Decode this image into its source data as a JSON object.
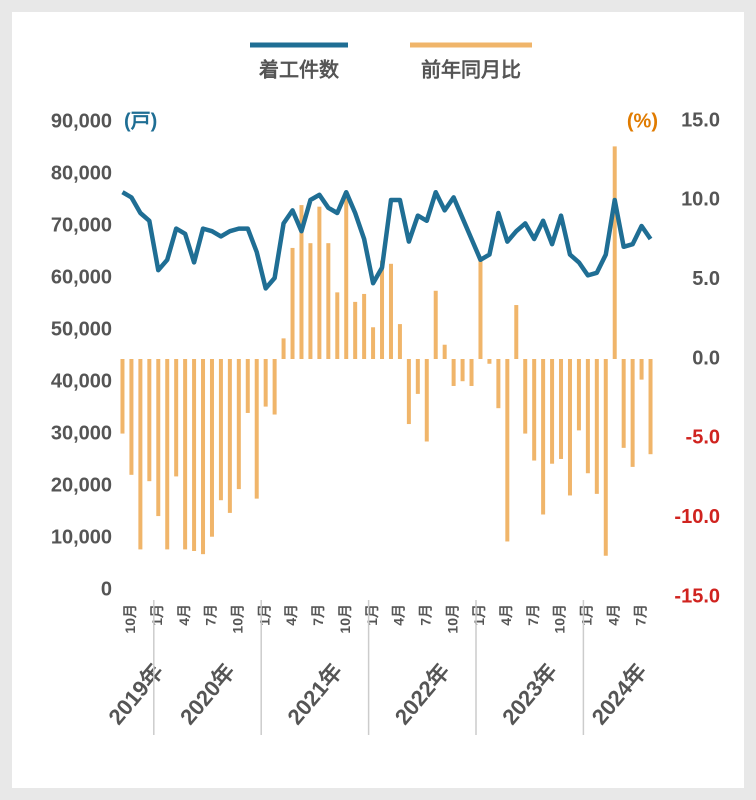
{
  "chart_data": {
    "type": "line_bar",
    "series": [
      {
        "name": "着工件数",
        "type": "line",
        "axis": "y",
        "color": "#1f6e94",
        "values": [
          76500,
          75500,
          72500,
          71000,
          61500,
          63500,
          69500,
          68500,
          63000,
          69500,
          69000,
          68000,
          69000,
          69500,
          69500,
          65000,
          58000,
          60000,
          70500,
          73000,
          69000,
          75000,
          76000,
          73500,
          72500,
          76500,
          72500,
          67500,
          59000,
          62000,
          75000,
          75000,
          67000,
          72000,
          71000,
          76500,
          73000,
          75500,
          71500,
          67500,
          63500,
          64500,
          72500,
          67000,
          69000,
          70500,
          67500,
          71000,
          66500,
          72000,
          64500,
          63000,
          60500,
          61000,
          64500,
          75000,
          66000,
          66500,
          70000,
          67500
        ]
      },
      {
        "name": "前年同月比",
        "type": "bar",
        "axis": "y2",
        "color": "#f0b56a",
        "values": [
          -4.7,
          -7.3,
          -12.0,
          -7.7,
          -9.9,
          -12.0,
          -7.4,
          -12.0,
          -12.1,
          -12.3,
          -11.2,
          -8.9,
          -9.7,
          -8.2,
          -3.4,
          -8.8,
          -3.0,
          -3.5,
          1.3,
          7.0,
          9.7,
          7.3,
          9.6,
          7.3,
          4.2,
          10.3,
          3.6,
          4.1,
          2.0,
          6.2,
          6.0,
          2.2,
          -4.1,
          -2.2,
          -5.2,
          4.3,
          0.9,
          -1.7,
          -1.4,
          -1.7,
          6.3,
          -0.3,
          -3.1,
          -11.5,
          3.4,
          -4.7,
          -6.4,
          -9.8,
          -6.6,
          -6.3,
          -8.6,
          -4.5,
          -7.2,
          -8.5,
          -12.4,
          13.4,
          -5.6,
          -6.8,
          -1.3,
          -6.0
        ]
      }
    ],
    "categories": [
      null,
      "10月",
      null,
      null,
      "1月",
      null,
      null,
      "4月",
      null,
      null,
      "7月",
      null,
      null,
      "10月",
      null,
      null,
      "1月",
      null,
      null,
      "4月",
      null,
      null,
      "7月",
      null,
      null,
      "10月",
      null,
      null,
      "1月",
      null,
      null,
      "4月",
      null,
      null,
      "7月",
      null,
      null,
      "10月",
      null,
      null,
      "1月",
      null,
      null,
      "4月",
      null,
      null,
      "7月",
      null,
      null,
      "10月",
      null,
      null,
      "1月",
      null,
      null,
      "4月",
      null,
      null,
      "7月",
      null
    ],
    "years": [
      "2019年",
      "2020年",
      "2021年",
      "2022年",
      "2023年",
      "2024年"
    ],
    "y_unit": "(戸)",
    "y2_unit": "(%)",
    "y_unit_color": "#1f6e94",
    "y2_unit_color": "#e07b00",
    "negative_tick_color": "#d0231f",
    "ylim": [
      0,
      90000
    ],
    "yticks": [
      0,
      {
        "value": 10000,
        "label": "10,000"
      },
      {
        "value": 20000,
        "label": "20,000"
      },
      {
        "value": 30000,
        "label": "30,000"
      },
      {
        "value": 40000,
        "label": "40,000"
      },
      {
        "value": 50000,
        "label": "50,000"
      },
      {
        "value": 60000,
        "label": "60,000"
      },
      {
        "value": 70000,
        "label": "70,000"
      },
      {
        "value": 80000,
        "label": "80,000"
      },
      {
        "value": 90000,
        "label": "90,000"
      }
    ],
    "y2lim": [
      -15,
      15
    ],
    "y2ticks": [
      {
        "value": -15,
        "label": "-15.0"
      },
      {
        "value": -10,
        "label": "-10.0"
      },
      {
        "value": -5,
        "label": "-5.0"
      },
      {
        "value": 0,
        "label": "0.0"
      },
      {
        "value": 5,
        "label": "5.0"
      },
      {
        "value": 10,
        "label": "10.0"
      },
      {
        "value": 15,
        "label": "15.0"
      }
    ]
  }
}
